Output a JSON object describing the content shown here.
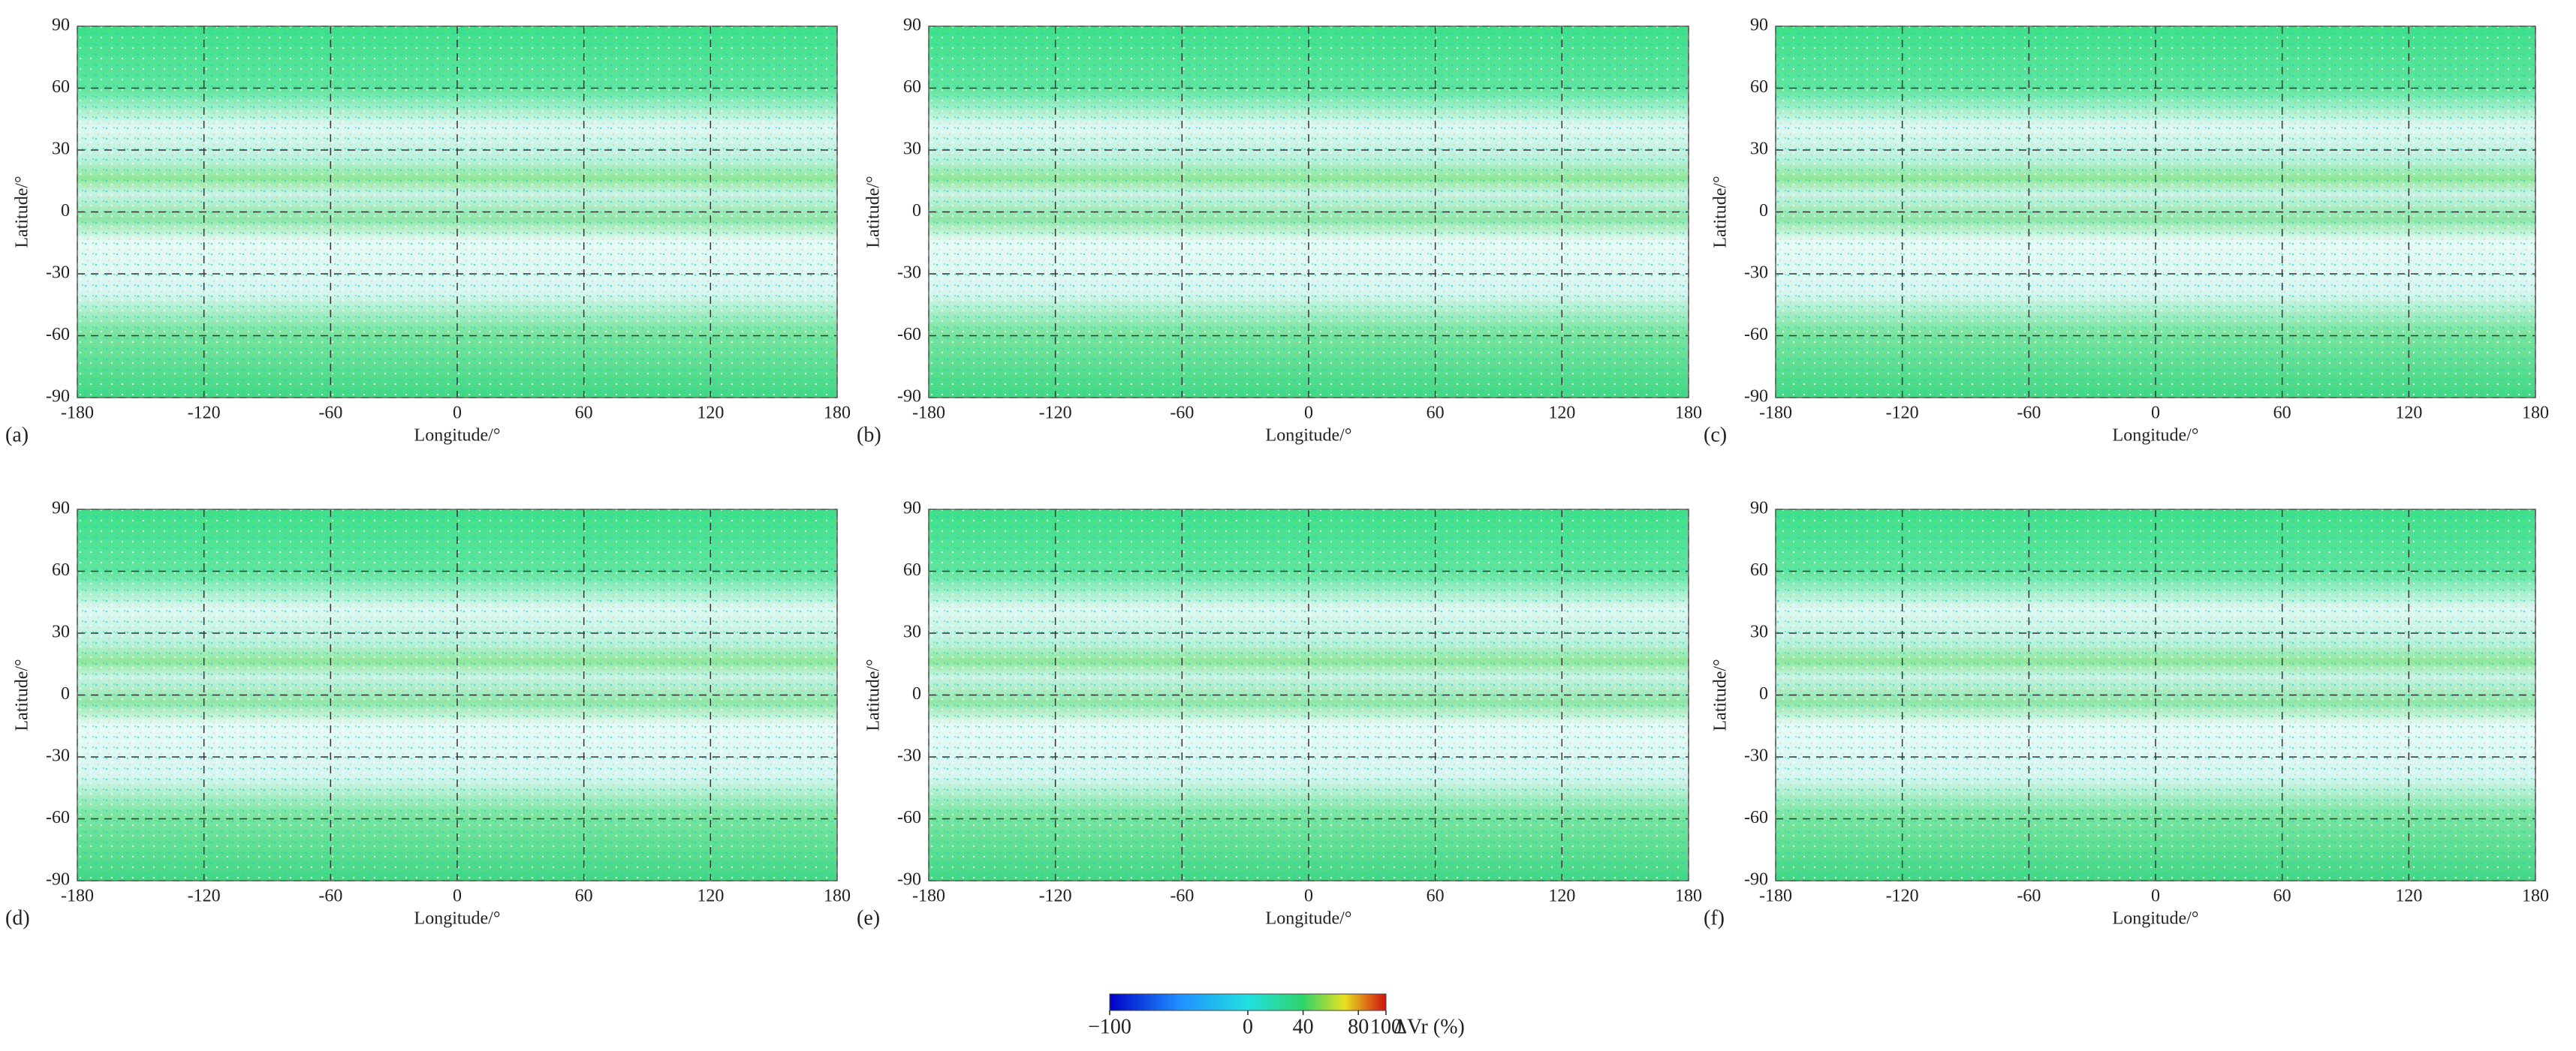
{
  "chart_data": [
    {
      "type": "map",
      "panel_label": "(a)",
      "xlabel": "Longitude/°",
      "ylabel": "Latitude/°",
      "xlim": [
        -180,
        180
      ],
      "ylim": [
        -90,
        90
      ],
      "xticks": [
        -180,
        -120,
        -60,
        0,
        60,
        120,
        180
      ],
      "yticks": [
        -90,
        -60,
        -30,
        0,
        30,
        60,
        90
      ],
      "grid": true
    },
    {
      "type": "map",
      "panel_label": "(b)",
      "xlabel": "Longitude/°",
      "ylabel": "Latitude/°",
      "xlim": [
        -180,
        180
      ],
      "ylim": [
        -90,
        90
      ],
      "xticks": [
        -180,
        -120,
        -60,
        0,
        60,
        120,
        180
      ],
      "yticks": [
        -90,
        -60,
        -30,
        0,
        30,
        60,
        90
      ],
      "grid": true
    },
    {
      "type": "map",
      "panel_label": "(c)",
      "xlabel": "Longitude/°",
      "ylabel": "Latitude/°",
      "xlim": [
        -180,
        180
      ],
      "ylim": [
        -90,
        90
      ],
      "xticks": [
        -180,
        -120,
        -60,
        0,
        60,
        120,
        180
      ],
      "yticks": [
        -90,
        -60,
        -30,
        0,
        30,
        60,
        90
      ],
      "grid": true
    },
    {
      "type": "map",
      "panel_label": "(d)",
      "xlabel": "Longitude/°",
      "ylabel": "Latitude/°",
      "xlim": [
        -180,
        180
      ],
      "ylim": [
        -90,
        90
      ],
      "xticks": [
        -180,
        -120,
        -60,
        0,
        60,
        120,
        180
      ],
      "yticks": [
        -90,
        -60,
        -30,
        0,
        30,
        60,
        90
      ],
      "grid": true
    },
    {
      "type": "map",
      "panel_label": "(e)",
      "xlabel": "Longitude/°",
      "ylabel": "Latitude/°",
      "xlim": [
        -180,
        180
      ],
      "ylim": [
        -90,
        90
      ],
      "xticks": [
        -180,
        -120,
        -60,
        0,
        60,
        120,
        180
      ],
      "yticks": [
        -90,
        -60,
        -30,
        0,
        30,
        60,
        90
      ],
      "grid": true
    },
    {
      "type": "map",
      "panel_label": "(f)",
      "xlabel": "Longitude/°",
      "ylabel": "Latitude/°",
      "xlim": [
        -180,
        180
      ],
      "ylim": [
        -90,
        90
      ],
      "xticks": [
        -180,
        -120,
        -60,
        0,
        60,
        120,
        180
      ],
      "yticks": [
        -90,
        -60,
        -30,
        0,
        30,
        60,
        90
      ],
      "grid": true
    },
    {
      "type": "colorbar",
      "label": "ΔVr (%)",
      "xlim": [
        -100,
        100
      ],
      "xticks": [
        {
          "value": -100,
          "label": "−100"
        },
        0,
        40,
        80,
        100
      ]
    }
  ]
}
